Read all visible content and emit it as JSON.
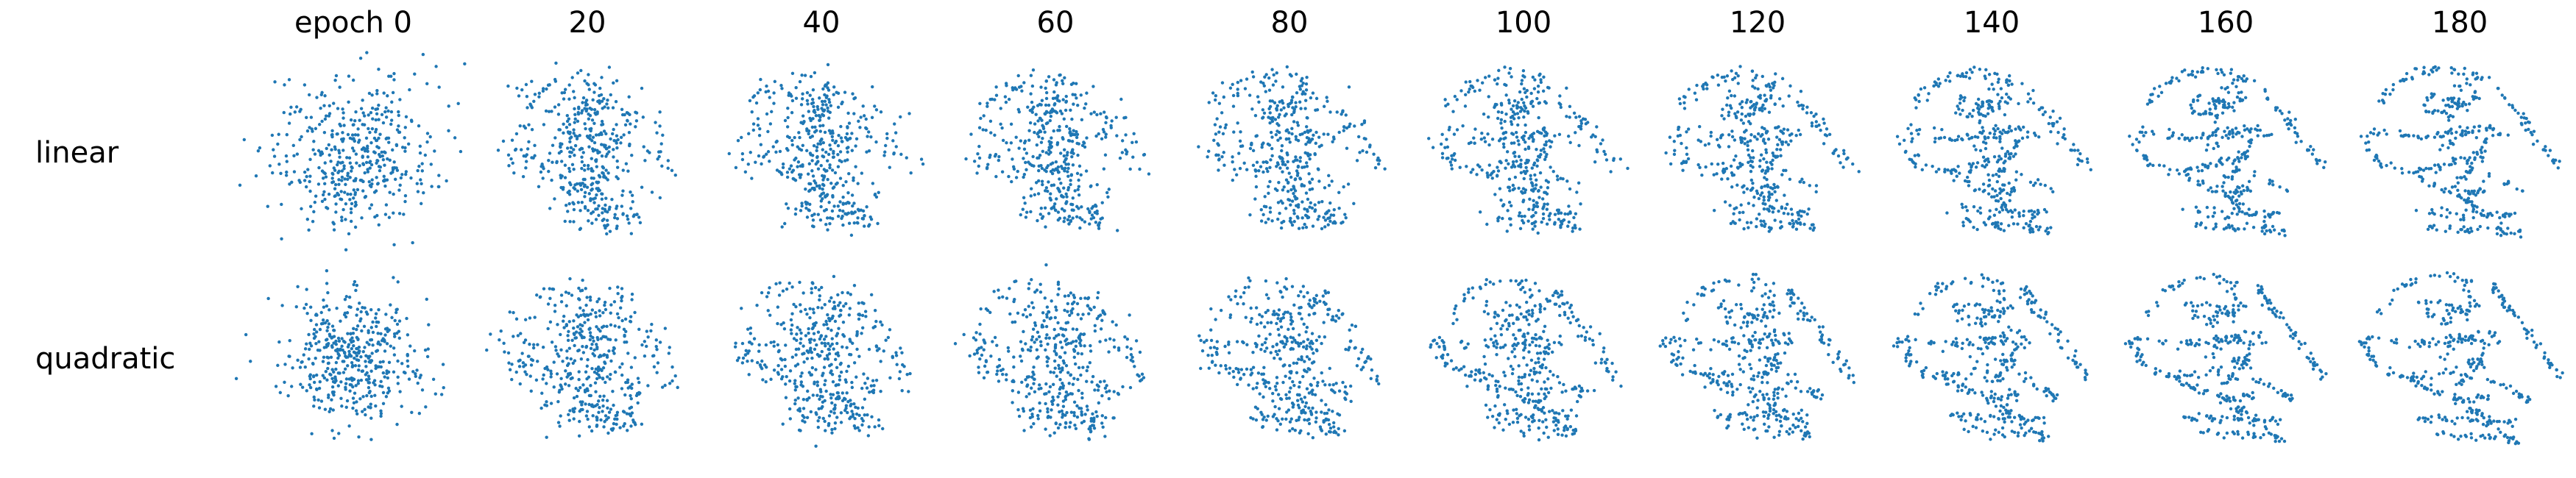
{
  "chart_data": {
    "type": "scatter",
    "title": "",
    "columns": [
      "epoch 0",
      "20",
      "40",
      "60",
      "80",
      "100",
      "120",
      "140",
      "160",
      "180"
    ],
    "rows": [
      "linear",
      "quadratic"
    ],
    "epochs": [
      0,
      20,
      40,
      60,
      80,
      100,
      120,
      140,
      160,
      180
    ],
    "point_color": "#1f77b4",
    "points_per_panel": 1000,
    "axes_visible": false,
    "grid": false,
    "legend": "none",
    "initial_distribution": {
      "linear": "gaussian cloud",
      "quadratic": "gaussian cloud"
    },
    "target_shape": "dinosaur (datasaurus) outline"
  }
}
